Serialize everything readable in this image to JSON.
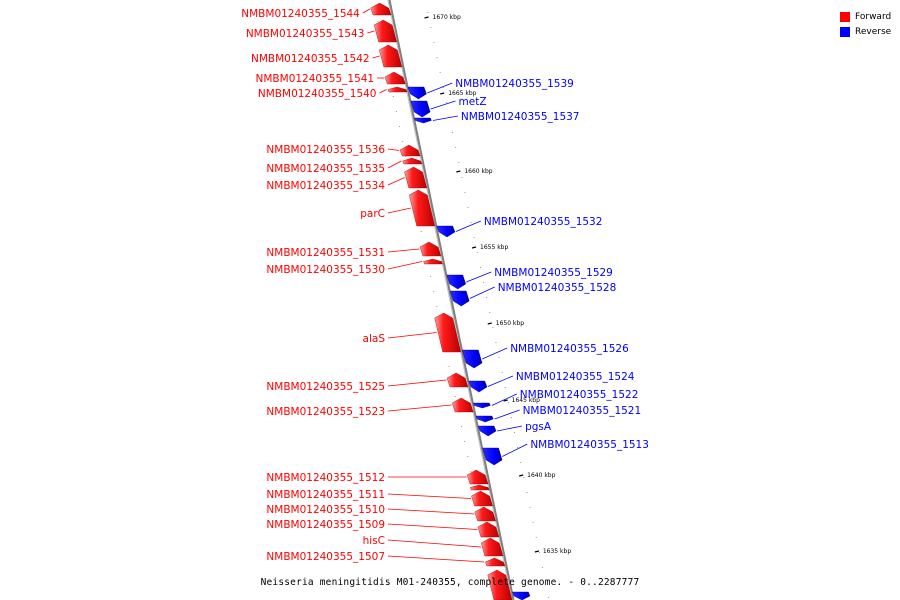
{
  "caption": "Neisseria meningitidis M01-240355, complete genome. - 0..2287777",
  "legend": [
    {
      "label": "Forward",
      "color": "#ff0000"
    },
    {
      "label": "Reverse",
      "color": "#0000ff"
    }
  ],
  "colors": {
    "forward": "#ff0000",
    "reverse": "#0000ff",
    "axis": "#7f7f7f"
  },
  "ticks": [
    {
      "label": "1670 kbp",
      "y": 17
    },
    {
      "label": "1665 kbp",
      "y": 93
    },
    {
      "label": "1660 kbp",
      "y": 171
    },
    {
      "label": "1655 kbp",
      "y": 247
    },
    {
      "label": "1650 kbp",
      "y": 323
    },
    {
      "label": "1645 kbp",
      "y": 400
    },
    {
      "label": "1640 kbp",
      "y": 475
    },
    {
      "label": "1635 kbp",
      "y": 551
    }
  ],
  "genes": [
    {
      "name": "NMBM01240355_1544",
      "strand": "forward",
      "y1": 3,
      "y2": 15
    },
    {
      "name": "NMBM01240355_1543",
      "strand": "forward",
      "y1": 20,
      "y2": 42
    },
    {
      "name": "NMBM01240355_1542",
      "strand": "forward",
      "y1": 45,
      "y2": 67
    },
    {
      "name": "NMBM01240355_1541",
      "strand": "forward",
      "y1": 72,
      "y2": 84
    },
    {
      "name": "NMBM01240355_1540",
      "strand": "forward",
      "y1": 87,
      "y2": 92
    },
    {
      "name": "NMBM01240355_1539",
      "strand": "reverse",
      "y1": 87,
      "y2": 99
    },
    {
      "name": "metZ",
      "strand": "reverse",
      "y1": 101,
      "y2": 117
    },
    {
      "name": "NMBM01240355_1537",
      "strand": "reverse",
      "y1": 118,
      "y2": 123
    },
    {
      "name": "NMBM01240355_1536",
      "strand": "forward",
      "y1": 145,
      "y2": 156
    },
    {
      "name": "NMBM01240355_1535",
      "strand": "forward",
      "y1": 158,
      "y2": 164
    },
    {
      "name": "NMBM01240355_1534",
      "strand": "forward",
      "y1": 167,
      "y2": 188
    },
    {
      "name": "parC",
      "strand": "forward",
      "y1": 190,
      "y2": 226
    },
    {
      "name": "NMBM01240355_1532",
      "strand": "reverse",
      "y1": 226,
      "y2": 237
    },
    {
      "name": "NMBM01240355_1531",
      "strand": "forward",
      "y1": 242,
      "y2": 256
    },
    {
      "name": "NMBM01240355_1530",
      "strand": "forward",
      "y1": 259,
      "y2": 264
    },
    {
      "name": "NMBM01240355_1529",
      "strand": "reverse",
      "y1": 275,
      "y2": 289
    },
    {
      "name": "NMBM01240355_1528",
      "strand": "reverse",
      "y1": 291,
      "y2": 306
    },
    {
      "name": "alaS",
      "strand": "forward",
      "y1": 313,
      "y2": 352
    },
    {
      "name": "NMBM01240355_1526",
      "strand": "reverse",
      "y1": 350,
      "y2": 368
    },
    {
      "name": "NMBM01240355_1524",
      "strand": "reverse",
      "y1": 381,
      "y2": 392
    },
    {
      "name": "NMBM01240355_1525",
      "strand": "forward",
      "y1": 373,
      "y2": 387
    },
    {
      "name": "NMBM01240355_1522",
      "strand": "reverse",
      "y1": 403,
      "y2": 408
    },
    {
      "name": "NMBM01240355_1523",
      "strand": "forward",
      "y1": 398,
      "y2": 412
    },
    {
      "name": "NMBM01240355_1521",
      "strand": "reverse",
      "y1": 416,
      "y2": 422
    },
    {
      "name": "pgsA",
      "strand": "reverse",
      "y1": 426,
      "y2": 436
    },
    {
      "name": "NMBM01240355_1513",
      "strand": "reverse",
      "y1": 448,
      "y2": 465
    },
    {
      "name": "NMBM01240355_1512",
      "strand": "forward",
      "y1": 470,
      "y2": 484
    },
    {
      "name": "",
      "strand": "forward",
      "y1": 485,
      "y2": 490
    },
    {
      "name": "NMBM01240355_1511",
      "strand": "forward",
      "y1": 491,
      "y2": 506
    },
    {
      "name": "NMBM01240355_1510",
      "strand": "forward",
      "y1": 507,
      "y2": 521
    },
    {
      "name": "NMBM01240355_1509",
      "strand": "forward",
      "y1": 522,
      "y2": 537
    },
    {
      "name": "hisC",
      "strand": "forward",
      "y1": 538,
      "y2": 556
    },
    {
      "name": "NMBM01240355_1507",
      "strand": "forward",
      "y1": 558,
      "y2": 566
    },
    {
      "name": "",
      "strand": "forward",
      "y1": 570,
      "y2": 600
    },
    {
      "name": "",
      "strand": "reverse",
      "y1": 592,
      "y2": 600
    }
  ]
}
